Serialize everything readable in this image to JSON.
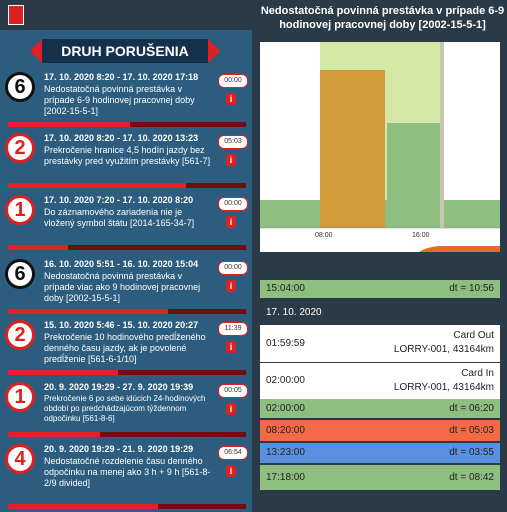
{
  "violations_panel": {
    "title": "DRUH PORUŠENIA",
    "items": [
      {
        "severity": "6",
        "badge_color": "#111111",
        "period": "17. 10. 2020 8:20 - 17. 10. 2020 17:18",
        "description": "Nedostatočná povinná prestávka v prípade 6-9 hodinovej pracovnej doby [2002-15-5-1]",
        "time": "00:00"
      },
      {
        "severity": "2",
        "badge_color": "#e02020",
        "period": "17. 10. 2020 8:20 - 17. 10. 2020 13:23",
        "description": "Prekročenie hranice 4,5 hodín jazdy bez prestávky pred využitím prestávky [561-7]",
        "time": "05:03"
      },
      {
        "severity": "1",
        "badge_color": "#e02020",
        "period": "17. 10. 2020 7:20 - 17. 10. 2020 8:20",
        "description": "Do záznamového zariadenia nie je vložený symbol štátu [2014-165-34-7]",
        "time": "00:00"
      },
      {
        "severity": "6",
        "badge_color": "#111111",
        "period": "16. 10. 2020 5:51 - 16. 10. 2020 15:04",
        "description": "Nedostatočná povinná prestávka v prípade viac ako 9 hodinovej pracovnej doby [2002-15-5-1]",
        "time": "00:00"
      },
      {
        "severity": "2",
        "badge_color": "#e02020",
        "period": "15. 10. 2020 5:46 - 15. 10. 2020 20:27",
        "description": "Prekročenie 10 hodinového predĺženého denného času jazdy, ak je povolené predĺženie [561-6-1/10]",
        "time": "11:39"
      },
      {
        "severity": "1",
        "badge_color": "#e02020",
        "period": "20. 9. 2020 19:29 - 27. 9. 2020 19:39",
        "description": "Prekročenie 6 po sebe idúcich 24-hodinových období po predchádzajúcom týždennom odpočinku [561-8-6]",
        "time": "00:05"
      },
      {
        "severity": "4",
        "badge_color": "#e02020",
        "period": "20. 9. 2020 19:29 - 21. 9. 2020 19:29",
        "description": "Nedostatočné rozdelenie času denného odpočinku na menej ako 3 h + 9 h [561-8-2/9 divided]",
        "time": "06:54"
      }
    ]
  },
  "detail_panel": {
    "title": "Nedostatočná povinná prestávka v prípade 6-9 hodinovej pracovnej doby [2002-15-5-1]",
    "chart": {
      "x_labels": [
        "08:00",
        "16:00"
      ]
    },
    "timeline": [
      {
        "time": "15:04:00",
        "dt": "dt = 10:56",
        "color": "#8fbf80"
      },
      {
        "date": "17. 10. 2020"
      },
      {
        "time": "01:59:59",
        "event": "Card Out",
        "detail": "LORRY-001, 43164km"
      },
      {
        "time": "02:00:00",
        "event": "Card In",
        "detail": "LORRY-001, 43164km"
      },
      {
        "time": "02:00:00",
        "dt": "dt = 06:20",
        "color": "#8fbf80"
      },
      {
        "time": "08:20:00",
        "dt": "dt = 05:03",
        "color": "#f26a45"
      },
      {
        "time": "13:23:00",
        "dt": "dt = 03:55",
        "color": "#5b8fe0"
      },
      {
        "time": "17:18:00",
        "dt": "dt = 08:42",
        "color": "#8fbf80"
      }
    ]
  }
}
